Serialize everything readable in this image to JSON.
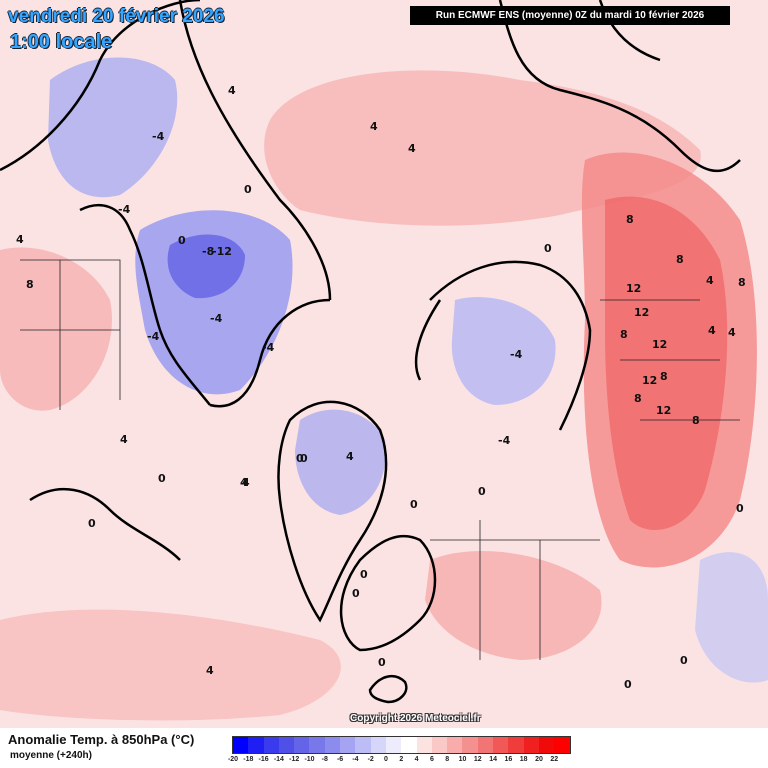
{
  "header": {
    "date_line": "vendredi 20 février 2026",
    "time_line": "1:00 locale",
    "run_banner": "Run ECMWF ENS (moyenne) 0Z du mardi 10 février 2026"
  },
  "map": {
    "copyright": "Copyright 2026 Meteociel.fr",
    "contour_labels": [
      "4",
      "-4",
      "0",
      "-4",
      "-8",
      "-12",
      "-4",
      "-4",
      "0",
      "-4",
      "4",
      "4",
      "4",
      "0",
      "4",
      "8",
      "8",
      "8",
      "12",
      "12",
      "8",
      "12",
      "12",
      "12",
      "8",
      "8",
      "4",
      "8",
      "4",
      "4",
      "0",
      "4",
      "-4",
      "-4",
      "0",
      "0",
      "0",
      "0",
      "4",
      "4",
      "0",
      "0",
      "0",
      "0",
      "0",
      "0",
      "4",
      "0",
      "8"
    ]
  },
  "legend": {
    "title": "Anomalie Temp. à 850hPa (°C)",
    "subtitle": "moyenne  (+240h)",
    "ticks": [
      "-20",
      "-18",
      "-16",
      "-14",
      "-12",
      "-10",
      "-8",
      "-6",
      "-4",
      "-2",
      "0",
      "2",
      "4",
      "6",
      "8",
      "10",
      "12",
      "14",
      "16",
      "18",
      "20",
      "22"
    ],
    "colors": [
      "#0000ff",
      "#1f1ff5",
      "#3a3aee",
      "#5050e8",
      "#6464e8",
      "#7878ea",
      "#8c8cee",
      "#a4a4f2",
      "#bcbcf6",
      "#d6d6fa",
      "#ececfc",
      "#ffffff",
      "#fde2e2",
      "#fbc8c8",
      "#f8acac",
      "#f59090",
      "#f37474",
      "#f25858",
      "#f13c3c",
      "#f02020",
      "#f00a0a",
      "#ff0000"
    ]
  }
}
